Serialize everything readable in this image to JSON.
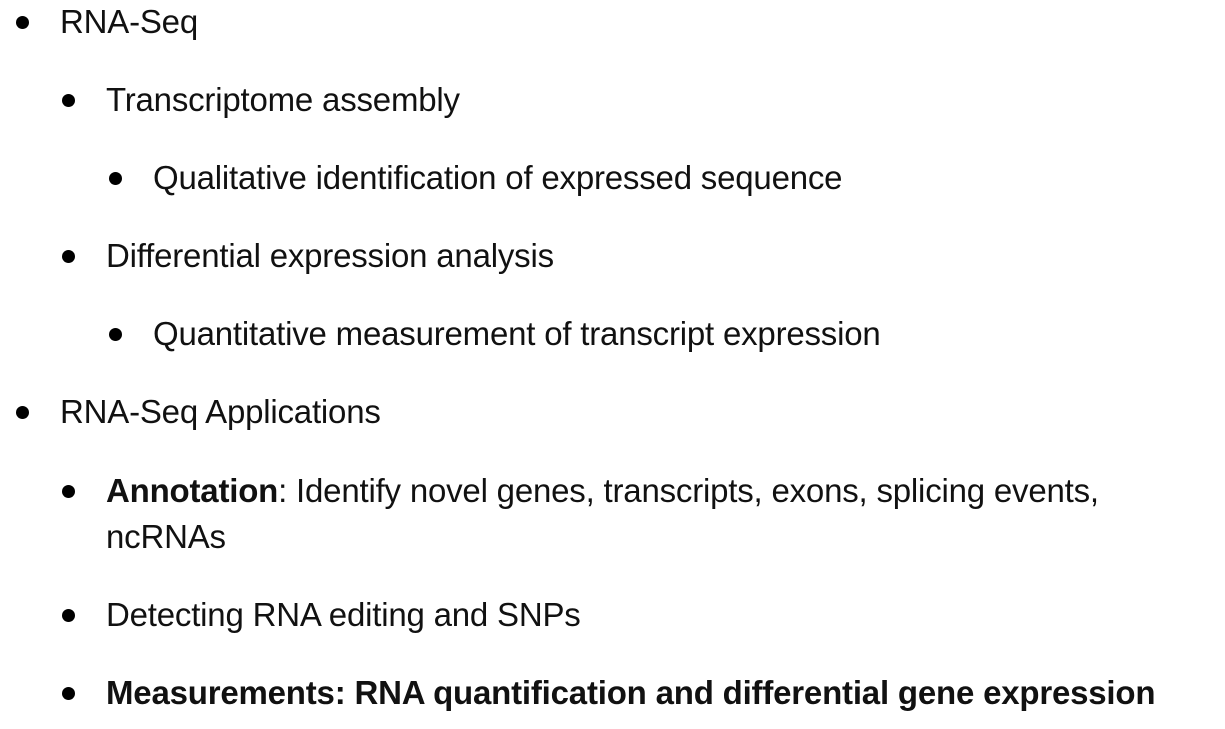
{
  "bullets": [
    {
      "text": "RNA-Seq",
      "children": [
        {
          "text": "Transcriptome assembly",
          "children": [
            {
              "text": "Qualitative identification of expressed sequence"
            }
          ]
        },
        {
          "text": "Differential expression analysis",
          "children": [
            {
              "text": "Quantitative measurement of transcript expression"
            }
          ]
        }
      ]
    },
    {
      "text": "RNA-Seq Applications",
      "children": [
        {
          "bold": "Annotation",
          "text": ": Identify novel genes, transcripts, exons, splicing events, ncRNAs"
        },
        {
          "text": "Detecting RNA editing and SNPs"
        },
        {
          "bold": "Measurements: RNA quantification and differential gene expression"
        }
      ]
    }
  ]
}
